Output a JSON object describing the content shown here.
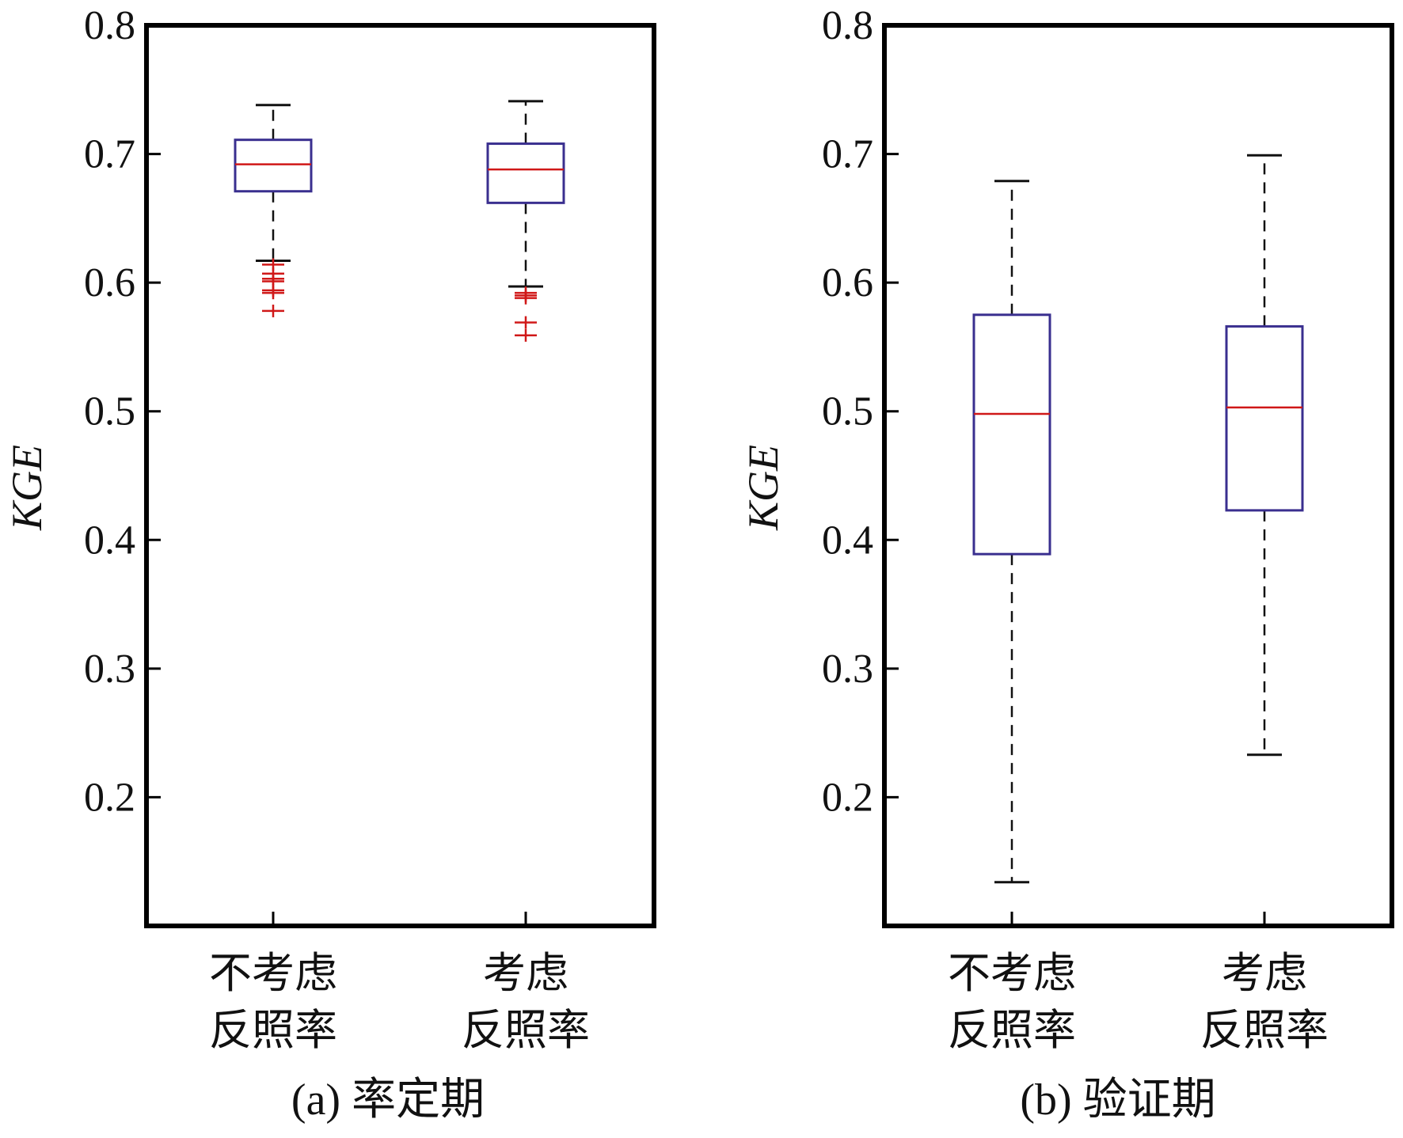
{
  "chart_data": [
    {
      "type": "box",
      "caption": "(a) 率定期",
      "ylabel": "KGE",
      "ylim": [
        0.1,
        0.8
      ],
      "yticks": [
        "0.2",
        "0.3",
        "0.4",
        "0.5",
        "0.6",
        "0.7",
        "0.8"
      ],
      "categories": [
        {
          "line1": "不考虑",
          "line2": "反照率"
        },
        {
          "line1": "考虑",
          "line2": "反照率"
        }
      ],
      "boxes": [
        {
          "whisker_low": 0.617,
          "q1": 0.671,
          "median": 0.692,
          "q3": 0.711,
          "whisker_high": 0.738,
          "outliers": [
            0.614,
            0.607,
            0.603,
            0.601,
            0.594,
            0.592,
            0.578
          ]
        },
        {
          "whisker_low": 0.597,
          "q1": 0.662,
          "median": 0.688,
          "q3": 0.708,
          "whisker_high": 0.741,
          "outliers": [
            0.592,
            0.59,
            0.588,
            0.569,
            0.559
          ]
        }
      ]
    },
    {
      "type": "box",
      "caption": "(b) 验证期",
      "ylabel": "KGE",
      "ylim": [
        0.1,
        0.8
      ],
      "yticks": [
        "0.2",
        "0.3",
        "0.4",
        "0.5",
        "0.6",
        "0.7",
        "0.8"
      ],
      "categories": [
        {
          "line1": "不考虑",
          "line2": "反照率"
        },
        {
          "line1": "考虑",
          "line2": "反照率"
        }
      ],
      "boxes": [
        {
          "whisker_low": 0.134,
          "q1": 0.389,
          "median": 0.498,
          "q3": 0.575,
          "whisker_high": 0.679,
          "outliers": []
        },
        {
          "whisker_low": 0.233,
          "q1": 0.423,
          "median": 0.503,
          "q3": 0.566,
          "whisker_high": 0.699,
          "outliers": []
        }
      ]
    }
  ],
  "colors": {
    "box": "#3a2f8f",
    "median": "#d01818",
    "outlier": "#d01818",
    "whisker": "#111111",
    "axis": "#000000"
  }
}
